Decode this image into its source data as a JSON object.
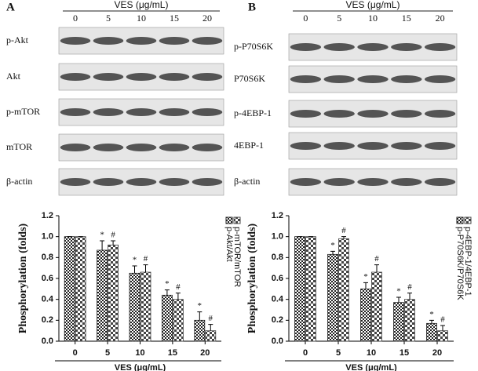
{
  "blots": [
    {
      "letter": "A",
      "header": "VES (μg/mL)",
      "doses": [
        "0",
        "5",
        "10",
        "15",
        "20"
      ],
      "rows": [
        "p-Akt",
        "Akt",
        "p-mTOR",
        "mTOR",
        "β-actin"
      ]
    },
    {
      "letter": "B",
      "header": "VES (μg/mL)",
      "doses": [
        "0",
        "5",
        "10",
        "15",
        "20"
      ],
      "rows": [
        "p-P70S6K",
        "P70S6K",
        "p-4EBP-1",
        "4EBP-1",
        "β-actin"
      ]
    }
  ],
  "chart_data": [
    {
      "type": "bar",
      "x_label": "VES (μg/mL)",
      "y_label": "Phosphorylation (folds)",
      "categories": [
        "0",
        "5",
        "10",
        "15",
        "20"
      ],
      "ylim": [
        0,
        1.2
      ],
      "yticks": [
        {
          "value": 0,
          "label": "0.0"
        },
        {
          "value": 0.2,
          "label": "0.2"
        },
        {
          "value": 0.4,
          "label": "0.4"
        },
        {
          "value": 0.6,
          "label": "0.6"
        },
        {
          "value": 0.8,
          "label": "0.8"
        },
        {
          "value": 1,
          "label": "1.0"
        },
        {
          "value": 1.2,
          "label": "1.2"
        }
      ],
      "series": [
        {
          "name": "p-Akt/Akt",
          "color": "#222",
          "values": [
            1,
            0.87,
            0.65,
            0.44,
            0.2
          ],
          "errors": [
            0,
            0.09,
            0.07,
            0.05,
            0.08
          ],
          "markers": [
            null,
            "*",
            "*",
            "*",
            "*"
          ]
        },
        {
          "name": "p-mTOR/mTOR",
          "color": "#444",
          "values": [
            1,
            0.92,
            0.66,
            0.4,
            0.1
          ],
          "errors": [
            0,
            0.04,
            0.07,
            0.06,
            0.06
          ],
          "markers": [
            null,
            "#",
            "#",
            "#",
            "#"
          ]
        }
      ]
    },
    {
      "type": "bar",
      "x_label": "VES (μg/mL)",
      "y_label": "Phosphorylation (folds)",
      "categories": [
        "0",
        "5",
        "10",
        "15",
        "20"
      ],
      "ylim": [
        0,
        1.2
      ],
      "yticks": [
        {
          "value": 0,
          "label": "0.0"
        },
        {
          "value": 0.2,
          "label": "0.2"
        },
        {
          "value": 0.4,
          "label": "0.4"
        },
        {
          "value": 0.6,
          "label": "0.6"
        },
        {
          "value": 0.8,
          "label": "0.8"
        },
        {
          "value": 1,
          "label": "1.0"
        },
        {
          "value": 1.2,
          "label": "1.2"
        }
      ],
      "series": [
        {
          "name": "p-P70S6K/P70S6K",
          "color": "#222",
          "values": [
            1,
            0.83,
            0.5,
            0.37,
            0.17
          ],
          "errors": [
            0,
            0.03,
            0.06,
            0.05,
            0.03
          ],
          "markers": [
            null,
            "*",
            "*",
            "*",
            "*"
          ]
        },
        {
          "name": "p-4EBP-1/4EBP-1",
          "color": "#444",
          "values": [
            1,
            0.98,
            0.66,
            0.4,
            0.1
          ],
          "errors": [
            0,
            0.02,
            0.07,
            0.06,
            0.05
          ],
          "markers": [
            null,
            "#",
            "#",
            "#",
            "#"
          ]
        }
      ]
    }
  ]
}
